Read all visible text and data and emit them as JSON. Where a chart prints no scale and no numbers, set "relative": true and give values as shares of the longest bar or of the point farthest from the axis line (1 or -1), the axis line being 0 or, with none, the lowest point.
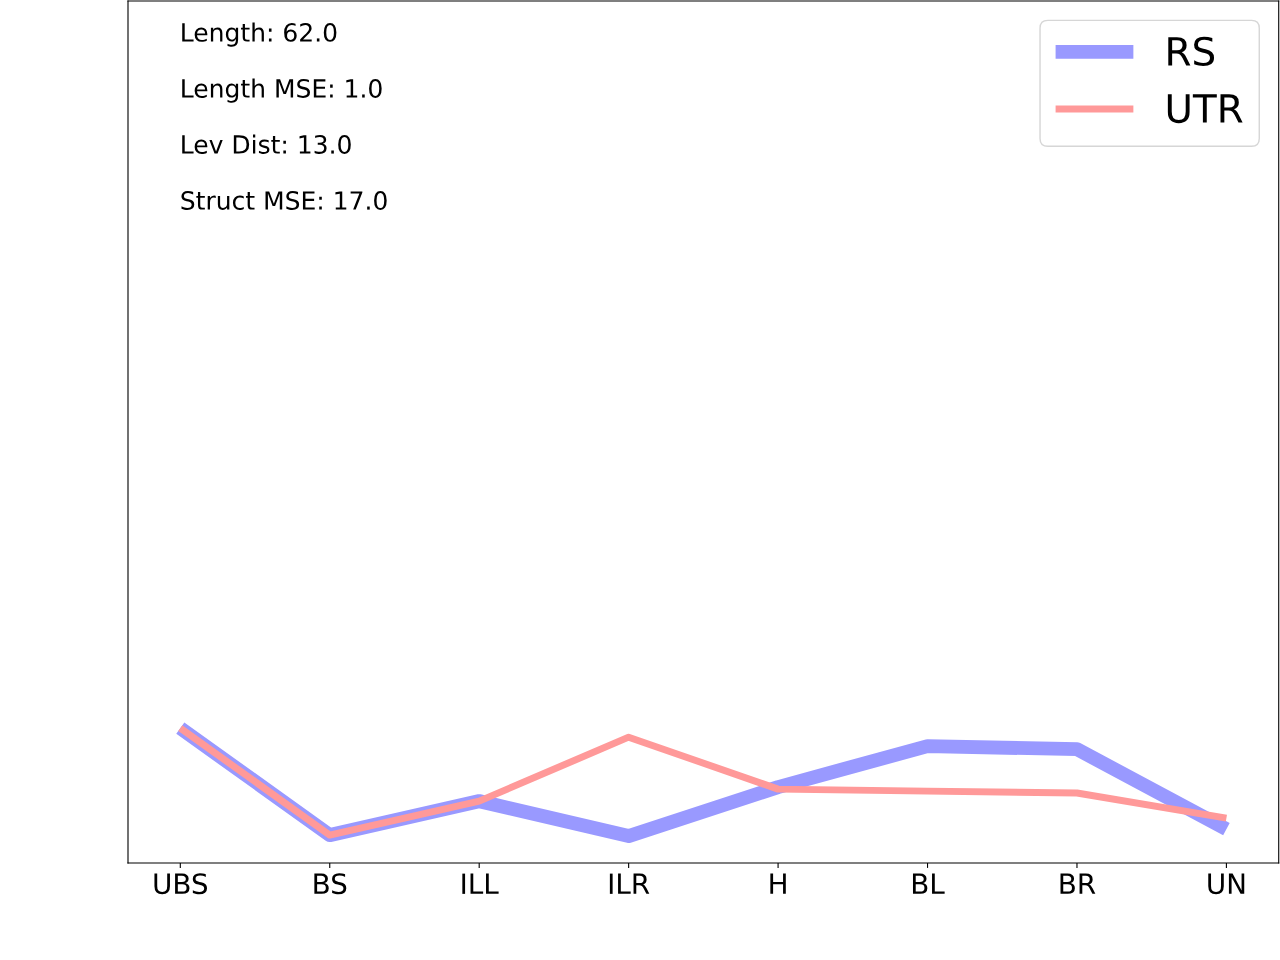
{
  "chart_data": {
    "type": "line",
    "relative": true,
    "tick_labels": "x",
    "grid": false,
    "legend": "top right",
    "marker": "none",
    "line_style": "solid",
    "categories": [
      "UBS",
      "BS",
      "ILL",
      "ILR",
      "H",
      "BL",
      "BR",
      "UN"
    ],
    "series": [
      {
        "name": "RS",
        "color": "#9999ff",
        "values": [
          1,
          0.207,
          0.459,
          0.2,
          0.563,
          0.867,
          0.844,
          0.252
        ]
      },
      {
        "name": "UTR",
        "color": "#ff9999",
        "values": [
          1,
          0.207,
          0.459,
          0.933,
          0.548,
          0.533,
          0.519,
          0.333
        ]
      }
    ],
    "annotations": [
      "Length: 62.0",
      "Length MSE: 1.0",
      "Lev Dist: 13.0",
      "Struct MSE: 17.0"
    ]
  }
}
